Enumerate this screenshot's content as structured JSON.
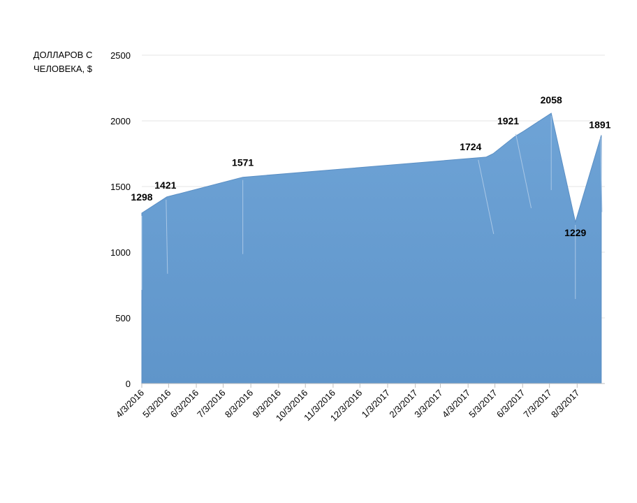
{
  "chart_data": {
    "type": "area",
    "ylabel_lines": [
      "ДОЛЛАРОВ С",
      "ЧЕЛОВЕКА, $"
    ],
    "ylim": [
      0,
      2500
    ],
    "yticks": [
      0,
      500,
      1000,
      1500,
      2000,
      2500
    ],
    "xlim": [
      "2016-04-03",
      "2017-09-03"
    ],
    "xtick_labels": [
      "4/3/2016",
      "5/3/2016",
      "6/3/2016",
      "7/3/2016",
      "8/3/2016",
      "9/3/2016",
      "10/3/2016",
      "11/3/2016",
      "12/3/2016",
      "1/3/2017",
      "2/3/2017",
      "3/3/2017",
      "4/3/2017",
      "5/3/2017",
      "6/3/2017",
      "7/3/2017",
      "8/3/2017"
    ],
    "grid": true,
    "color": "#6ea3d6",
    "series": [
      {
        "points": [
          {
            "x": "2016-04-03",
            "y": 1298
          },
          {
            "x": "2016-05-01",
            "y": 1421
          },
          {
            "x": "2016-07-25",
            "y": 1571
          },
          {
            "x": "2017-04-23",
            "y": 1724
          },
          {
            "x": "2017-05-01",
            "y": 1750
          },
          {
            "x": "2017-05-25",
            "y": 1880
          },
          {
            "x": "2017-06-04",
            "y": 1921
          },
          {
            "x": "2017-07-05",
            "y": 2058
          },
          {
            "x": "2017-08-01",
            "y": 1229
          },
          {
            "x": "2017-08-30",
            "y": 1891
          }
        ]
      }
    ],
    "data_labels": [
      {
        "x": "2016-04-03",
        "text": "1298"
      },
      {
        "x": "2016-05-01",
        "text": "1421"
      },
      {
        "x": "2016-07-25",
        "text": "1571"
      },
      {
        "x": "2017-04-23",
        "text": "1724"
      },
      {
        "x": "2017-06-04",
        "text": "1921"
      },
      {
        "x": "2017-07-05",
        "text": "2058"
      },
      {
        "x": "2017-08-01",
        "text": "1229"
      },
      {
        "x": "2017-08-30",
        "text": "1891"
      }
    ]
  }
}
